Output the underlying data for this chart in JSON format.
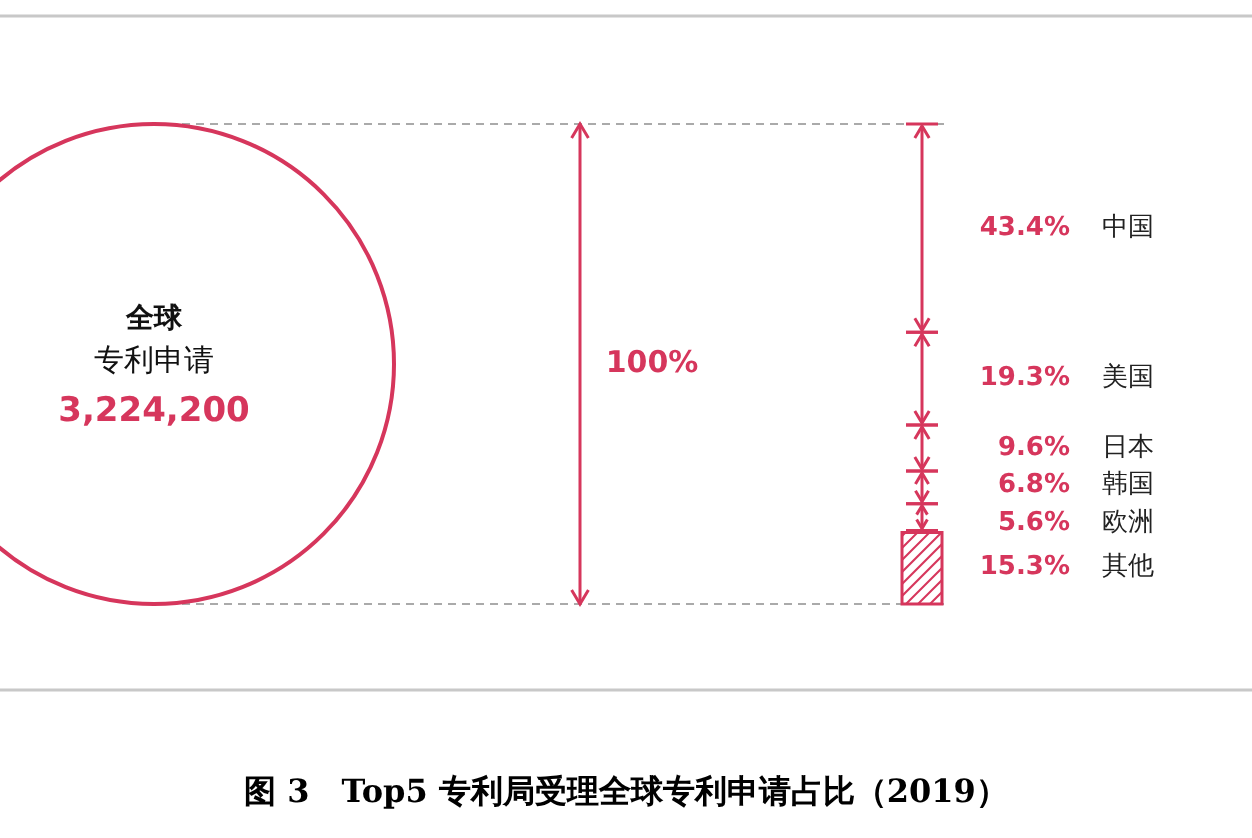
{
  "chart_data": {
    "type": "other",
    "title": "图 3　Top5 专利局受理全球专利申请占比（2019）",
    "categories": [
      "中国",
      "美国",
      "日本",
      "韩国",
      "欧洲",
      "其他"
    ],
    "values": [
      43.4,
      19.3,
      9.6,
      6.8,
      5.6,
      15.3
    ],
    "value_labels": [
      "43.4%",
      "19.3%",
      "9.6%",
      "6.8%",
      "5.6%",
      "15.3%"
    ],
    "color": "#d6365c",
    "annotations": [
      "全球",
      "专利申请",
      "3,224,200",
      "100%"
    ]
  }
}
